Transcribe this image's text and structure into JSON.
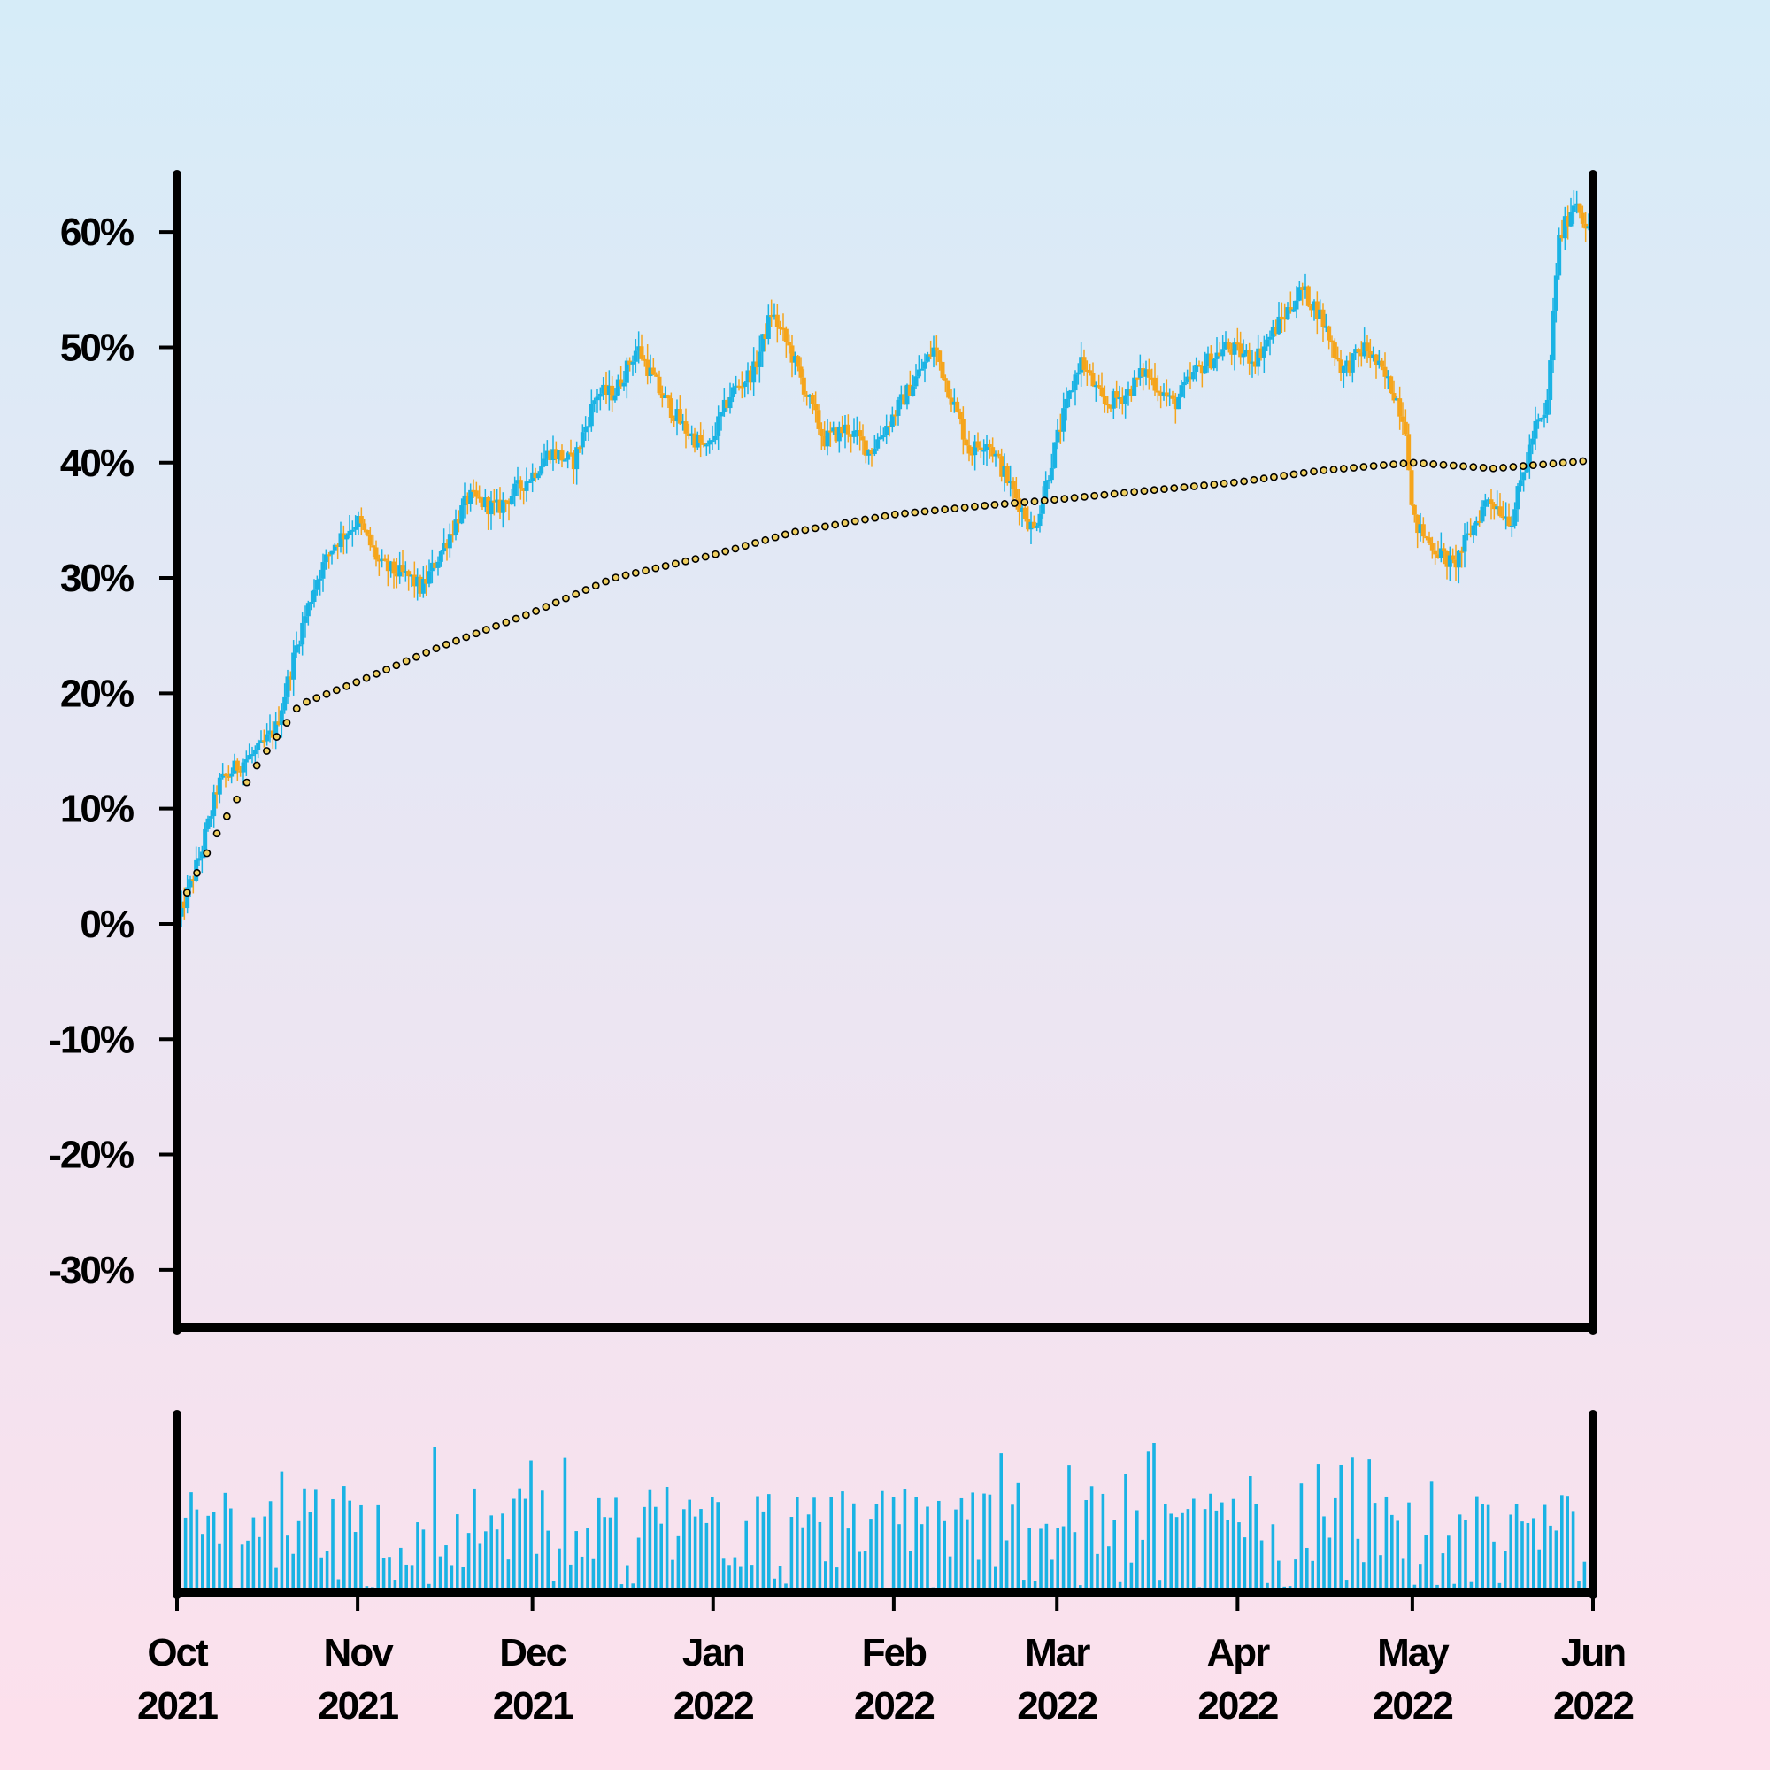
{
  "chart_data": {
    "type": "candlestick",
    "title": "",
    "xlabel": "",
    "ylabel": "",
    "y_axis": {
      "unit": "%",
      "range": [
        -35,
        65
      ],
      "ticks": [
        -30,
        -20,
        -10,
        0,
        10,
        20,
        30,
        40,
        50,
        60
      ],
      "tick_labels": [
        "-30%",
        "-20%",
        "-10%",
        "0%",
        "10%",
        "20%",
        "30%",
        "40%",
        "50%",
        "60%"
      ]
    },
    "x_axis": {
      "range": [
        "2021-10-01",
        "2022-06-01"
      ],
      "ticks": [
        "2021-10-01",
        "2021-11-01",
        "2021-12-01",
        "2022-01-01",
        "2022-02-01",
        "2022-03-01",
        "2022-04-01",
        "2022-05-01",
        "2022-06-01"
      ],
      "tick_labels": [
        [
          "Oct",
          "2021"
        ],
        [
          "Nov",
          "2021"
        ],
        [
          "Dec",
          "2021"
        ],
        [
          "Jan",
          "2022"
        ],
        [
          "Feb",
          "2022"
        ],
        [
          "Mar",
          "2022"
        ],
        [
          "Apr",
          "2022"
        ],
        [
          "May",
          "2022"
        ],
        [
          "Jun",
          "2022"
        ]
      ]
    },
    "grid": false,
    "legend": "none",
    "colors": {
      "up": "#1ab3e4",
      "down": "#f5a51c",
      "volume": "#1ab3e4",
      "ma_fill": "#f0d060",
      "ma_edge": "#000000",
      "axis": "#000000"
    },
    "price_key_points": [
      [
        "2021-10-01",
        0
      ],
      [
        "2021-10-05",
        6
      ],
      [
        "2021-10-08",
        12
      ],
      [
        "2021-10-12",
        14
      ],
      [
        "2021-10-15",
        15
      ],
      [
        "2021-10-18",
        17
      ],
      [
        "2021-10-22",
        25
      ],
      [
        "2021-10-25",
        30
      ],
      [
        "2021-10-28",
        33
      ],
      [
        "2021-11-01",
        35
      ],
      [
        "2021-11-05",
        31
      ],
      [
        "2021-11-10",
        30
      ],
      [
        "2021-11-12",
        29
      ],
      [
        "2021-11-16",
        33
      ],
      [
        "2021-11-20",
        37
      ],
      [
        "2021-11-25",
        36
      ],
      [
        "2021-12-01",
        39
      ],
      [
        "2021-12-04",
        41
      ],
      [
        "2021-12-08",
        40
      ],
      [
        "2021-12-12",
        46
      ],
      [
        "2021-12-15",
        46
      ],
      [
        "2021-12-19",
        50
      ],
      [
        "2021-12-23",
        46
      ],
      [
        "2021-12-27",
        43
      ],
      [
        "2021-12-31",
        41
      ],
      [
        "2022-01-04",
        46
      ],
      [
        "2022-01-08",
        48
      ],
      [
        "2022-01-11",
        53
      ],
      [
        "2022-01-14",
        50
      ],
      [
        "2022-01-20",
        42
      ],
      [
        "2022-01-24",
        43
      ],
      [
        "2022-01-28",
        41
      ],
      [
        "2022-02-02",
        45
      ],
      [
        "2022-02-08",
        50
      ],
      [
        "2022-02-14",
        41
      ],
      [
        "2022-02-17",
        42
      ],
      [
        "2022-02-21",
        38
      ],
      [
        "2022-02-25",
        34
      ],
      [
        "2022-03-01",
        42
      ],
      [
        "2022-03-05",
        49
      ],
      [
        "2022-03-09",
        45
      ],
      [
        "2022-03-13",
        46
      ],
      [
        "2022-03-16",
        48
      ],
      [
        "2022-03-21",
        45
      ],
      [
        "2022-03-25",
        48
      ],
      [
        "2022-03-30",
        50
      ],
      [
        "2022-04-04",
        49
      ],
      [
        "2022-04-08",
        52
      ],
      [
        "2022-04-12",
        55
      ],
      [
        "2022-04-15",
        53
      ],
      [
        "2022-04-19",
        48
      ],
      [
        "2022-04-23",
        50
      ],
      [
        "2022-04-28",
        46
      ],
      [
        "2022-04-30",
        43
      ],
      [
        "2022-05-01",
        35
      ],
      [
        "2022-05-04",
        33
      ],
      [
        "2022-05-08",
        31
      ],
      [
        "2022-05-11",
        34
      ],
      [
        "2022-05-14",
        37
      ],
      [
        "2022-05-18",
        35
      ],
      [
        "2022-05-22",
        43
      ],
      [
        "2022-05-24",
        44
      ],
      [
        "2022-05-26",
        59
      ],
      [
        "2022-05-29",
        63
      ],
      [
        "2022-06-01",
        59
      ]
    ],
    "moving_average_key_points": [
      [
        "2021-10-01",
        1
      ],
      [
        "2021-10-08",
        8
      ],
      [
        "2021-10-15",
        14
      ],
      [
        "2021-10-22",
        19
      ],
      [
        "2021-11-01",
        21
      ],
      [
        "2021-11-15",
        24
      ],
      [
        "2021-12-01",
        27
      ],
      [
        "2021-12-15",
        30
      ],
      [
        "2022-01-01",
        32
      ],
      [
        "2022-01-15",
        34
      ],
      [
        "2022-02-01",
        35.5
      ],
      [
        "2022-02-15",
        36.2
      ],
      [
        "2022-03-01",
        36.8
      ],
      [
        "2022-03-15",
        37.5
      ],
      [
        "2022-04-01",
        38.3
      ],
      [
        "2022-04-15",
        39.3
      ],
      [
        "2022-05-01",
        40
      ],
      [
        "2022-05-15",
        39.5
      ],
      [
        "2022-06-01",
        40.2
      ]
    ]
  }
}
